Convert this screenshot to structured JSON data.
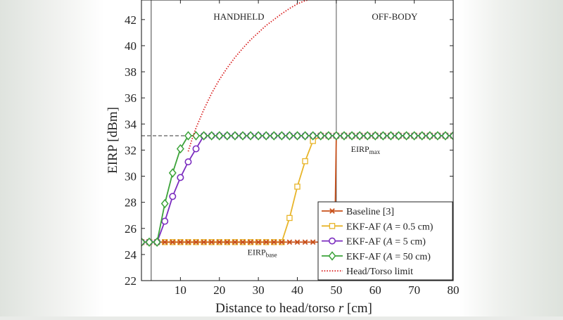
{
  "chart_data": {
    "type": "line",
    "title": "",
    "xlabel": "Distance to head/torso",
    "xlabel_var": "r",
    "xlabel_unit": "[cm]",
    "ylabel": "EIRP [dBm]",
    "xlim": [
      0,
      80
    ],
    "ylim": [
      22,
      43.5
    ],
    "xticks": [
      10,
      20,
      30,
      40,
      50,
      60,
      70,
      80
    ],
    "yticks": [
      22,
      24,
      26,
      28,
      30,
      32,
      34,
      36,
      38,
      40,
      42
    ],
    "grid": false,
    "legend_position": "bottom-right",
    "region_labels": [
      {
        "text": "HANDHELD",
        "x": 25
      },
      {
        "text": "OFF-BODY",
        "x": 65
      }
    ],
    "region_boundary_x": 50,
    "vertical_ref_x": 2.5,
    "reference_lines": [
      {
        "name": "EIRPmax",
        "label_main": "EIRP",
        "label_sub": "max",
        "y": 33.1
      },
      {
        "name": "EIRPbase",
        "label_main": "EIRP",
        "label_sub": "base",
        "y": 24.95
      }
    ],
    "colors": {
      "baseline": "#c8501a",
      "ekf_05": "#e8b52a",
      "ekf_5": "#7b2cbf",
      "ekf_50": "#3ca33a",
      "limit": "#d91f1f"
    },
    "series": [
      {
        "name": "Baseline [3]",
        "color_key": "baseline",
        "marker": "x",
        "x": [
          0,
          2,
          4,
          6,
          8,
          10,
          12,
          14,
          16,
          18,
          20,
          22,
          24,
          26,
          28,
          30,
          32,
          34,
          36,
          38,
          40,
          42,
          44,
          46,
          48,
          49.6,
          50,
          52,
          54,
          56,
          58,
          60,
          62,
          64,
          66,
          68,
          70,
          72,
          74,
          76,
          78,
          80
        ],
        "y": [
          24.95,
          24.95,
          24.95,
          24.95,
          24.95,
          24.95,
          24.95,
          24.95,
          24.95,
          24.95,
          24.95,
          24.95,
          24.95,
          24.95,
          24.95,
          24.95,
          24.95,
          24.95,
          24.95,
          24.95,
          24.95,
          24.95,
          24.95,
          24.95,
          24.95,
          24.95,
          33.1,
          33.1,
          33.1,
          33.1,
          33.1,
          33.1,
          33.1,
          33.1,
          33.1,
          33.1,
          33.1,
          33.1,
          33.1,
          33.1,
          33.1,
          33.1
        ],
        "marker_x": [
          0,
          2,
          4,
          6,
          8,
          10,
          12,
          14,
          16,
          18,
          20,
          22,
          24,
          26,
          28,
          30,
          32,
          34,
          36,
          38,
          40,
          42,
          44,
          46,
          48,
          50,
          52,
          54,
          56,
          58,
          60,
          62,
          64,
          66,
          68,
          70,
          72,
          74,
          76,
          78,
          80
        ]
      },
      {
        "name": "EKF-AF (A = 0.5 cm)",
        "color_key": "ekf_05",
        "marker": "square",
        "x": [
          0,
          2,
          4,
          6,
          8,
          10,
          12,
          14,
          16,
          18,
          20,
          22,
          24,
          26,
          28,
          30,
          32,
          34,
          36,
          38,
          40,
          42,
          44,
          46,
          48,
          50,
          52,
          54,
          56,
          58,
          60,
          62,
          64,
          66,
          68,
          70,
          72,
          74,
          76,
          78,
          80
        ],
        "y": [
          24.95,
          24.95,
          24.95,
          24.95,
          24.95,
          24.95,
          24.95,
          24.95,
          24.95,
          24.95,
          24.95,
          24.95,
          24.95,
          24.95,
          24.95,
          24.95,
          24.95,
          24.95,
          24.95,
          26.8,
          29.2,
          31.15,
          32.7,
          33.1,
          33.1,
          33.1,
          33.1,
          33.1,
          33.1,
          33.1,
          33.1,
          33.1,
          33.1,
          33.1,
          33.1,
          33.1,
          33.1,
          33.1,
          33.1,
          33.1,
          33.1
        ]
      },
      {
        "name": "EKF-AF (A = 5 cm)",
        "color_key": "ekf_5",
        "marker": "circle",
        "x": [
          0,
          2,
          4,
          6,
          8,
          10,
          12,
          14,
          16,
          18,
          20,
          22,
          24,
          26,
          28,
          30,
          32,
          34,
          36,
          38,
          40,
          42,
          44,
          46,
          48,
          50,
          52,
          54,
          56,
          58,
          60,
          62,
          64,
          66,
          68,
          70,
          72,
          74,
          76,
          78,
          80
        ],
        "y": [
          24.95,
          24.95,
          24.95,
          26.55,
          28.45,
          29.9,
          31.1,
          32.1,
          33.1,
          33.1,
          33.1,
          33.1,
          33.1,
          33.1,
          33.1,
          33.1,
          33.1,
          33.1,
          33.1,
          33.1,
          33.1,
          33.1,
          33.1,
          33.1,
          33.1,
          33.1,
          33.1,
          33.1,
          33.1,
          33.1,
          33.1,
          33.1,
          33.1,
          33.1,
          33.1,
          33.1,
          33.1,
          33.1,
          33.1,
          33.1,
          33.1
        ]
      },
      {
        "name": "EKF-AF (A = 50 cm)",
        "color_key": "ekf_50",
        "marker": "diamond",
        "x": [
          0,
          2,
          4,
          6,
          8,
          10,
          12,
          14,
          16,
          18,
          20,
          22,
          24,
          26,
          28,
          30,
          32,
          34,
          36,
          38,
          40,
          42,
          44,
          46,
          48,
          50,
          52,
          54,
          56,
          58,
          60,
          62,
          64,
          66,
          68,
          70,
          72,
          74,
          76,
          78,
          80
        ],
        "y": [
          24.95,
          24.95,
          24.95,
          27.9,
          30.25,
          32.1,
          33.1,
          33.1,
          33.1,
          33.1,
          33.1,
          33.1,
          33.1,
          33.1,
          33.1,
          33.1,
          33.1,
          33.1,
          33.1,
          33.1,
          33.1,
          33.1,
          33.1,
          33.1,
          33.1,
          33.1,
          33.1,
          33.1,
          33.1,
          33.1,
          33.1,
          33.1,
          33.1,
          33.1,
          33.1,
          33.1,
          33.1,
          33.1,
          33.1,
          33.1,
          33.1
        ]
      },
      {
        "name": "Head/Torso limit",
        "color_key": "limit",
        "marker": "none",
        "style": "dotted",
        "x": [
          12,
          13,
          14,
          16,
          18,
          20,
          22,
          24,
          26,
          28,
          30,
          32,
          34,
          36,
          38,
          40,
          42,
          43.5
        ],
        "y": [
          31.9,
          32.85,
          33.7,
          35.1,
          36.35,
          37.4,
          38.3,
          39.1,
          39.8,
          40.45,
          41.0,
          41.55,
          42.0,
          42.45,
          42.85,
          43.2,
          43.45,
          43.55
        ]
      }
    ],
    "legend": [
      {
        "prefix": "Baseline [3]",
        "var": "",
        "suffix": ""
      },
      {
        "prefix": "EKF-AF (",
        "var": "A",
        "suffix": " = 0.5 cm)"
      },
      {
        "prefix": "EKF-AF (",
        "var": "A",
        "suffix": " = 5 cm)"
      },
      {
        "prefix": "EKF-AF (",
        "var": "A",
        "suffix": " = 50 cm)"
      },
      {
        "prefix": "Head/Torso limit",
        "var": "",
        "suffix": ""
      }
    ]
  }
}
